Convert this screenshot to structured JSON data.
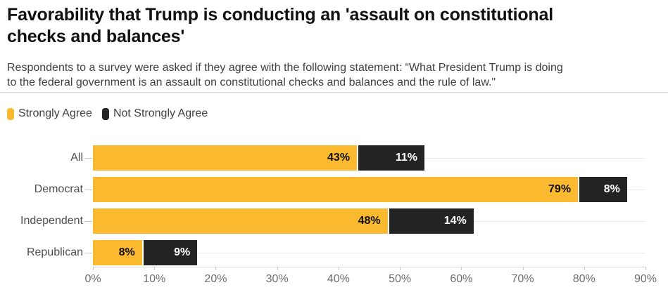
{
  "header": {
    "title": "Favorability that Trump is conducting an 'assault on constitutional checks and balances'",
    "subtitle": "Respondents to a survey were asked if they agree with the following statement: “What President Trump is doing to the federal government is an assault on constitutional checks and balances and the rule of law.\""
  },
  "legend": {
    "items": [
      {
        "label": "Strongly Agree",
        "color": "#fbb92f"
      },
      {
        "label": "Not Strongly Agree",
        "color": "#232323"
      }
    ]
  },
  "colors": {
    "strongly_agree": "#fbb92f",
    "not_strongly_agree": "#232323"
  },
  "chart_data": {
    "type": "bar",
    "orientation": "horizontal",
    "stacked": true,
    "title": "Favorability that Trump is conducting an 'assault on constitutional checks and balances'",
    "categories": [
      "All",
      "Democrat",
      "Independent",
      "Republican"
    ],
    "series": [
      {
        "name": "Strongly Agree",
        "color": "#fbb92f",
        "values": [
          43,
          79,
          48,
          8
        ]
      },
      {
        "name": "Not Strongly Agree",
        "color": "#232323",
        "values": [
          11,
          8,
          14,
          9
        ]
      }
    ],
    "data_labels": [
      [
        "43%",
        "11%"
      ],
      [
        "79%",
        "8%"
      ],
      [
        "48%",
        "14%"
      ],
      [
        "8%",
        "9%"
      ]
    ],
    "xlabel": "",
    "ylabel": "",
    "xlim": [
      0,
      90
    ],
    "x_tick_labels": [
      "0%",
      "10%",
      "20%",
      "30%",
      "40%",
      "50%",
      "60%",
      "70%",
      "80%",
      "90%"
    ],
    "value_suffix": "%",
    "grid": "row-guides",
    "legend_position": "top-left"
  }
}
